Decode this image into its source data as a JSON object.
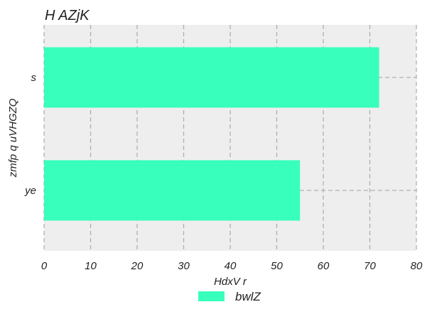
{
  "chart_data": {
    "type": "bar",
    "orientation": "horizontal",
    "title": "H AZjK",
    "xlabel": "HdxV r",
    "ylabel": "zmfp q uVHGZQ",
    "categories": [
      "s",
      "ye"
    ],
    "series": [
      {
        "name": "bwlZ",
        "values": [
          72,
          55
        ],
        "color": "#38ffbb"
      }
    ],
    "xlim": [
      0,
      80
    ],
    "xticks": [
      0,
      10,
      20,
      30,
      40,
      50,
      60,
      70,
      80
    ],
    "grid": true,
    "legend_position": "bottom-center"
  },
  "colors": {
    "plot_background": "#eeeeee",
    "grid": "#b0b0b0",
    "bar": "#38ffbb"
  }
}
